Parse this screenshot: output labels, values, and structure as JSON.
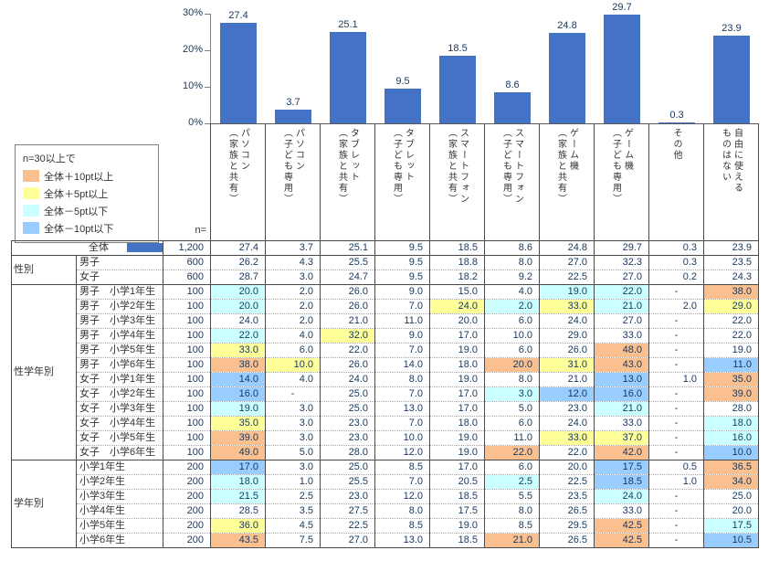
{
  "colors": {
    "bar": "#4472C4",
    "plus10": "#FAC090",
    "plus5": "#FFFF99",
    "minus5": "#CCFFFF",
    "minus10": "#99CCFF"
  },
  "legend": {
    "title": "n=30以上で",
    "items": [
      {
        "label": "全体＋10pt以上",
        "color_key": "plus10"
      },
      {
        "label": "全体＋5pt以上",
        "color_key": "plus5"
      },
      {
        "label": "全体－5pt以下",
        "color_key": "minus5"
      },
      {
        "label": "全体－10pt以下",
        "color_key": "minus10"
      }
    ]
  },
  "chart_data": {
    "type": "bar",
    "categories": [
      "パソコン（家族と共有）",
      "パソコン（子ども専用）",
      "タブレット（家族と共有）",
      "タブレット（子ども専用）",
      "スマートフォン（家族と共有）",
      "スマートフォン（子ども専用）",
      "ゲーム機（家族と共有）",
      "ゲーム機（子ども専用）",
      "その他",
      "自由に使えるものはない"
    ],
    "values": [
      27.4,
      3.7,
      25.1,
      9.5,
      18.5,
      8.6,
      24.8,
      29.7,
      0.3,
      23.9
    ],
    "title": "",
    "xlabel": "",
    "ylabel": "",
    "ylim": [
      0,
      30
    ],
    "yticks": [
      "30%",
      "20%",
      "10%",
      "0%"
    ],
    "grid": false,
    "legend_position": "none",
    "value_labels": true
  },
  "table": {
    "n_header": "n=",
    "columns": [
      "パソコン\n（家族と共有）",
      "パソコン\n（子ども専用）",
      "タブレット\n（家族と共有）",
      "タブレット\n（子ども専用）",
      "スマートフォン\n（家族と共有）",
      "スマートフォン\n（子ども専用）",
      "ゲーム機\n（家族と共有）",
      "ゲーム機\n（子ども専用）",
      "その他",
      "自由に使える\nものはない"
    ],
    "groups": [
      {
        "label": "",
        "rows": [
          {
            "label": "全体",
            "total": true,
            "n": "1,200",
            "v": [
              "27.4",
              "3.7",
              "25.1",
              "9.5",
              "18.5",
              "8.6",
              "24.8",
              "29.7",
              "0.3",
              "23.9"
            ]
          }
        ]
      },
      {
        "label": "性別",
        "rows": [
          {
            "label": "男子",
            "n": "600",
            "v": [
              "26.2",
              "4.3",
              "25.5",
              "9.5",
              "18.8",
              "8.0",
              "27.0",
              "32.3",
              "0.3",
              "23.5"
            ]
          },
          {
            "label": "女子",
            "n": "600",
            "v": [
              "28.7",
              "3.0",
              "24.7",
              "9.5",
              "18.2",
              "9.2",
              "22.5",
              "27.0",
              "0.2",
              "24.3"
            ]
          }
        ]
      },
      {
        "label": "性学年別",
        "rows": [
          {
            "label": "男子　小学1年生",
            "n": "100",
            "v": [
              "20.0",
              "2.0",
              "26.0",
              "9.0",
              "15.0",
              "4.0",
              "19.0",
              "22.0",
              "-",
              "38.0"
            ],
            "h": [
              "c",
              "",
              "",
              "",
              "",
              "",
              "c",
              "c",
              "",
              "o"
            ]
          },
          {
            "label": "男子　小学2年生",
            "n": "100",
            "v": [
              "20.0",
              "2.0",
              "26.0",
              "7.0",
              "24.0",
              "2.0",
              "33.0",
              "21.0",
              "2.0",
              "29.0"
            ],
            "h": [
              "c",
              "",
              "",
              "",
              "y",
              "c",
              "y",
              "c",
              "",
              "y"
            ]
          },
          {
            "label": "男子　小学3年生",
            "n": "100",
            "v": [
              "24.0",
              "2.0",
              "21.0",
              "11.0",
              "20.0",
              "6.0",
              "24.0",
              "27.0",
              "-",
              "22.0"
            ]
          },
          {
            "label": "男子　小学4年生",
            "n": "100",
            "v": [
              "22.0",
              "4.0",
              "32.0",
              "9.0",
              "17.0",
              "10.0",
              "29.0",
              "33.0",
              "-",
              "22.0"
            ],
            "h": [
              "c",
              "",
              "y",
              "",
              "",
              "",
              "",
              "",
              "",
              ""
            ]
          },
          {
            "label": "男子　小学5年生",
            "n": "100",
            "v": [
              "33.0",
              "6.0",
              "22.0",
              "7.0",
              "19.0",
              "6.0",
              "26.0",
              "48.0",
              "-",
              "19.0"
            ],
            "h": [
              "y",
              "",
              "",
              "",
              "",
              "",
              "",
              "o",
              "",
              ""
            ]
          },
          {
            "label": "男子　小学6年生",
            "n": "100",
            "v": [
              "38.0",
              "10.0",
              "26.0",
              "14.0",
              "18.0",
              "20.0",
              "31.0",
              "43.0",
              "-",
              "11.0"
            ],
            "h": [
              "o",
              "y",
              "",
              "",
              "",
              "o",
              "y",
              "o",
              "",
              "b"
            ]
          },
          {
            "label": "女子　小学1年生",
            "n": "100",
            "v": [
              "14.0",
              "4.0",
              "24.0",
              "8.0",
              "19.0",
              "8.0",
              "21.0",
              "13.0",
              "1.0",
              "35.0"
            ],
            "h": [
              "b",
              "",
              "",
              "",
              "",
              "",
              "",
              "b",
              "",
              "o"
            ]
          },
          {
            "label": "女子　小学2年生",
            "n": "100",
            "v": [
              "16.0",
              "-",
              "25.0",
              "7.0",
              "17.0",
              "3.0",
              "12.0",
              "16.0",
              "-",
              "39.0"
            ],
            "h": [
              "b",
              "",
              "",
              "",
              "",
              "c",
              "b",
              "b",
              "",
              "o"
            ]
          },
          {
            "label": "女子　小学3年生",
            "n": "100",
            "v": [
              "19.0",
              "3.0",
              "25.0",
              "13.0",
              "17.0",
              "5.0",
              "23.0",
              "21.0",
              "-",
              "28.0"
            ],
            "h": [
              "c",
              "",
              "",
              "",
              "",
              "",
              "",
              "c",
              "",
              ""
            ]
          },
          {
            "label": "女子　小学4年生",
            "n": "100",
            "v": [
              "35.0",
              "3.0",
              "23.0",
              "7.0",
              "18.0",
              "6.0",
              "24.0",
              "33.0",
              "-",
              "18.0"
            ],
            "h": [
              "y",
              "",
              "",
              "",
              "",
              "",
              "",
              "",
              "",
              "c"
            ]
          },
          {
            "label": "女子　小学5年生",
            "n": "100",
            "v": [
              "39.0",
              "3.0",
              "23.0",
              "10.0",
              "19.0",
              "11.0",
              "33.0",
              "37.0",
              "-",
              "16.0"
            ],
            "h": [
              "o",
              "",
              "",
              "",
              "",
              "",
              "y",
              "y",
              "",
              "c"
            ]
          },
          {
            "label": "女子　小学6年生",
            "n": "100",
            "v": [
              "49.0",
              "5.0",
              "28.0",
              "12.0",
              "19.0",
              "22.0",
              "22.0",
              "42.0",
              "-",
              "10.0"
            ],
            "h": [
              "o",
              "",
              "",
              "",
              "",
              "o",
              "",
              "o",
              "",
              "b"
            ]
          }
        ]
      },
      {
        "label": "学年別",
        "rows": [
          {
            "label": "小学1年生",
            "n": "200",
            "v": [
              "17.0",
              "3.0",
              "25.0",
              "8.5",
              "17.0",
              "6.0",
              "20.0",
              "17.5",
              "0.5",
              "36.5"
            ],
            "h": [
              "b",
              "",
              "",
              "",
              "",
              "",
              "",
              "b",
              "",
              "o"
            ]
          },
          {
            "label": "小学2年生",
            "n": "200",
            "v": [
              "18.0",
              "1.0",
              "25.5",
              "7.0",
              "20.5",
              "2.5",
              "22.5",
              "18.5",
              "1.0",
              "34.0"
            ],
            "h": [
              "c",
              "",
              "",
              "",
              "",
              "c",
              "",
              "b",
              "",
              "o"
            ]
          },
          {
            "label": "小学3年生",
            "n": "200",
            "v": [
              "21.5",
              "2.5",
              "23.0",
              "12.0",
              "18.5",
              "5.5",
              "23.5",
              "24.0",
              "-",
              "25.0"
            ],
            "h": [
              "c",
              "",
              "",
              "",
              "",
              "",
              "",
              "c",
              "",
              ""
            ]
          },
          {
            "label": "小学4年生",
            "n": "200",
            "v": [
              "28.5",
              "3.5",
              "27.5",
              "8.0",
              "17.5",
              "8.0",
              "26.5",
              "33.0",
              "-",
              "20.0"
            ]
          },
          {
            "label": "小学5年生",
            "n": "200",
            "v": [
              "36.0",
              "4.5",
              "22.5",
              "8.5",
              "19.0",
              "8.5",
              "29.5",
              "42.5",
              "-",
              "17.5"
            ],
            "h": [
              "y",
              "",
              "",
              "",
              "",
              "",
              "",
              "o",
              "",
              "c"
            ]
          },
          {
            "label": "小学6年生",
            "n": "200",
            "v": [
              "43.5",
              "7.5",
              "27.0",
              "13.0",
              "18.5",
              "21.0",
              "26.5",
              "42.5",
              "-",
              "10.5"
            ],
            "h": [
              "o",
              "",
              "",
              "",
              "",
              "o",
              "",
              "o",
              "",
              "b"
            ]
          }
        ]
      }
    ]
  }
}
